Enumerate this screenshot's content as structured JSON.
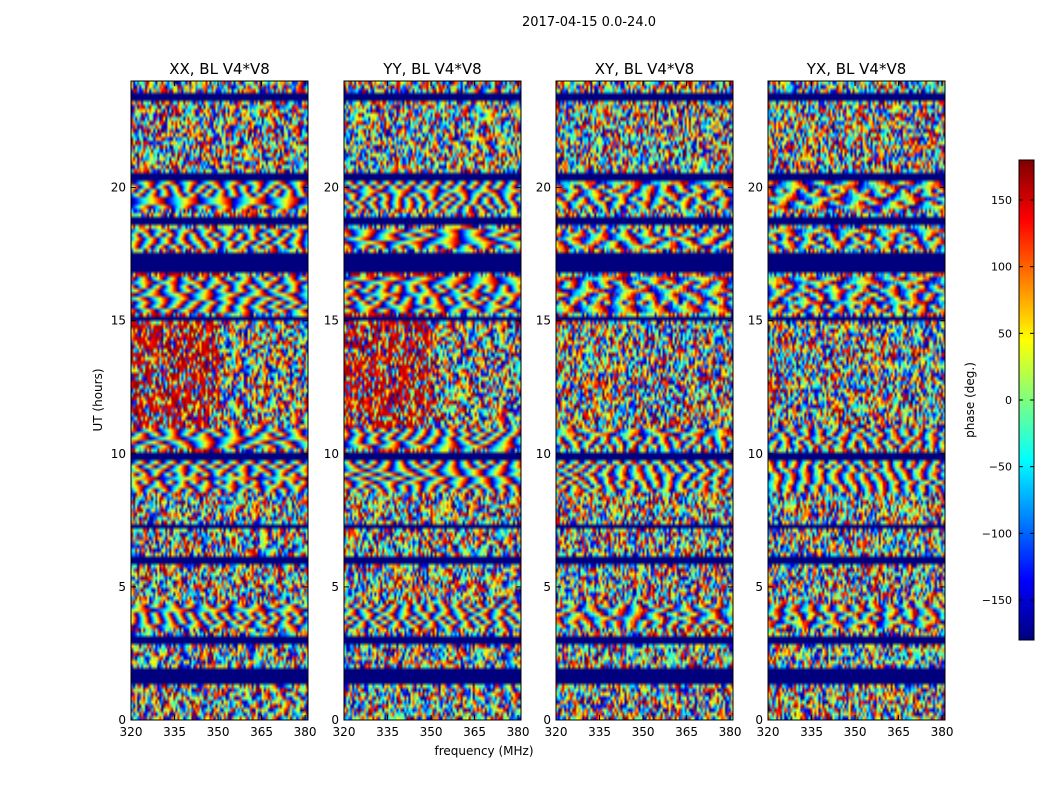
{
  "figure": {
    "suptitle": "2017-04-15 0.0-24.0",
    "shared_xlabel": "frequency (MHz)",
    "shared_ylabel": "UT (hours)"
  },
  "colorbar": {
    "label": "phase (deg.)",
    "range": [
      -180,
      180
    ],
    "ticks": [
      -150,
      -100,
      -50,
      0,
      50,
      100,
      150
    ],
    "tick_labels": [
      "−150",
      "−100",
      "−50",
      "0",
      "50",
      "100",
      "150"
    ],
    "colormap_stops": [
      "#00007f",
      "#0000ff",
      "#007fff",
      "#00ffff",
      "#7fff7f",
      "#ffff00",
      "#ff7f00",
      "#ff0000",
      "#7f0000"
    ]
  },
  "chart_data": [
    {
      "type": "heatmap",
      "title": "XX, BL V4*V8",
      "xlabel": "",
      "ylabel": "UT (hours)",
      "xlim": [
        320,
        381
      ],
      "ylim": [
        0,
        24
      ],
      "x_ticks": [
        320,
        335,
        350,
        365,
        380
      ],
      "y_ticks": [
        0,
        5,
        10,
        15,
        20
      ],
      "value_label": "phase (deg.)",
      "value_range": [
        -180,
        180
      ],
      "notes": "rapidly wrapping phase stripes vs frequency; flagged (dark blue) time bands"
    },
    {
      "type": "heatmap",
      "title": "YY, BL V4*V8",
      "xlabel": "frequency (MHz)",
      "ylabel": "",
      "xlim": [
        320,
        381
      ],
      "ylim": [
        0,
        24
      ],
      "x_ticks": [
        320,
        335,
        350,
        365,
        380
      ],
      "y_ticks": [
        0,
        5,
        10,
        15,
        20
      ],
      "value_label": "phase (deg.)",
      "value_range": [
        -180,
        180
      ],
      "notes": "rapidly wrapping phase stripes vs frequency; flagged (dark blue) time bands"
    },
    {
      "type": "heatmap",
      "title": "XY, BL V4*V8",
      "xlabel": "",
      "ylabel": "",
      "xlim": [
        320,
        381
      ],
      "ylim": [
        0,
        24
      ],
      "x_ticks": [
        320,
        335,
        350,
        365,
        380
      ],
      "y_ticks": [
        0,
        5,
        10,
        15,
        20
      ],
      "value_label": "phase (deg.)",
      "value_range": [
        -180,
        180
      ],
      "notes": "noisy phase with flagged (dark blue) time bands"
    },
    {
      "type": "heatmap",
      "title": "YX, BL V4*V8",
      "xlabel": "",
      "ylabel": "",
      "xlim": [
        320,
        381
      ],
      "ylim": [
        0,
        24
      ],
      "x_ticks": [
        320,
        335,
        350,
        365,
        380
      ],
      "y_ticks": [
        0,
        5,
        10,
        15,
        20
      ],
      "value_label": "phase (deg.)",
      "value_range": [
        -180,
        180
      ],
      "notes": "noisy phase with flagged (dark blue) time bands"
    }
  ]
}
